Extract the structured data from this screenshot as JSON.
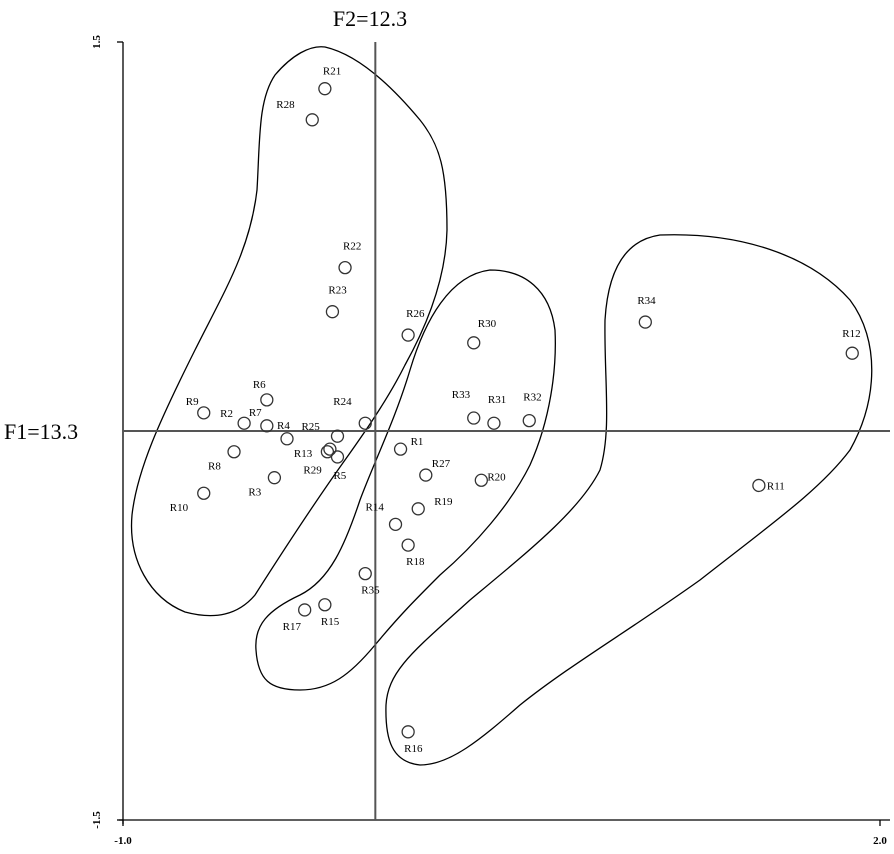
{
  "chart_data": {
    "type": "scatter",
    "x_label": "F2=12.3",
    "y_label": "F1=13.3",
    "xlim": [
      -1,
      2
    ],
    "ylim": [
      -1.5,
      1.5
    ],
    "xticks": [
      {
        "value": -1,
        "label": "-1.0"
      },
      {
        "value": 2,
        "label": "2.0"
      }
    ],
    "yticks": [
      1.5,
      -1.5
    ],
    "marker_color": "#333333",
    "points": [
      {
        "name": "R21",
        "x": -0.2,
        "y": 1.32
      },
      {
        "name": "R28",
        "x": -0.25,
        "y": 1.2
      },
      {
        "name": "R22",
        "x": -0.12,
        "y": 0.63
      },
      {
        "name": "R23",
        "x": -0.17,
        "y": 0.46
      },
      {
        "name": "R26",
        "x": 0.13,
        "y": 0.37
      },
      {
        "name": "R30",
        "x": 0.39,
        "y": 0.34
      },
      {
        "name": "R34",
        "x": 1.07,
        "y": 0.42
      },
      {
        "name": "R12",
        "x": 1.89,
        "y": 0.3
      },
      {
        "name": "R6",
        "x": -0.43,
        "y": 0.12
      },
      {
        "name": "R9",
        "x": -0.68,
        "y": 0.07
      },
      {
        "name": "R2",
        "x": -0.52,
        "y": 0.03
      },
      {
        "name": "R7",
        "x": -0.43,
        "y": 0.02
      },
      {
        "name": "R4",
        "x": -0.35,
        "y": -0.03
      },
      {
        "name": "R25",
        "x": -0.15,
        "y": -0.02
      },
      {
        "name": "R24",
        "x": -0.04,
        "y": 0.03
      },
      {
        "name": "R13",
        "x": -0.18,
        "y": -0.07
      },
      {
        "name": "R29",
        "x": -0.19,
        "y": -0.08
      },
      {
        "name": "R5",
        "x": -0.15,
        "y": -0.1
      },
      {
        "name": "R8",
        "x": -0.56,
        "y": -0.08
      },
      {
        "name": "R3",
        "x": -0.4,
        "y": -0.18
      },
      {
        "name": "R10",
        "x": -0.68,
        "y": -0.24
      },
      {
        "name": "R1",
        "x": 0.1,
        "y": -0.07
      },
      {
        "name": "R33",
        "x": 0.39,
        "y": 0.05
      },
      {
        "name": "R31",
        "x": 0.47,
        "y": 0.03
      },
      {
        "name": "R32",
        "x": 0.61,
        "y": 0.04
      },
      {
        "name": "R27",
        "x": 0.2,
        "y": -0.17
      },
      {
        "name": "R20",
        "x": 0.42,
        "y": -0.19
      },
      {
        "name": "R19",
        "x": 0.17,
        "y": -0.3
      },
      {
        "name": "R14",
        "x": 0.08,
        "y": -0.36
      },
      {
        "name": "R18",
        "x": 0.13,
        "y": -0.44
      },
      {
        "name": "R35",
        "x": -0.04,
        "y": -0.55
      },
      {
        "name": "R15",
        "x": -0.2,
        "y": -0.67
      },
      {
        "name": "R17",
        "x": -0.28,
        "y": -0.69
      },
      {
        "name": "R16",
        "x": 0.13,
        "y": -1.16
      },
      {
        "name": "R11",
        "x": 1.52,
        "y": -0.21
      }
    ]
  }
}
